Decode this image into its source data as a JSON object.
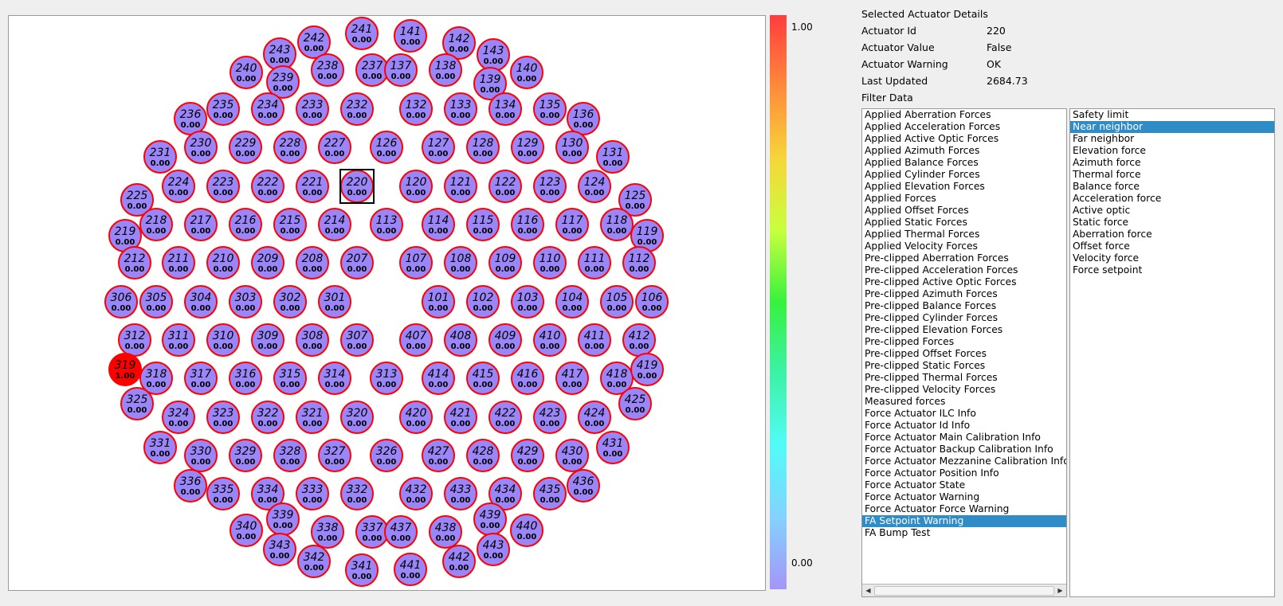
{
  "colors": {
    "actuator_fill": "#9a86f8",
    "actuator_border": "#ff0000",
    "warning_fill": "#ff0000",
    "selection_box": "#000000",
    "list_selection": "#308cc6"
  },
  "colorbar": {
    "max_label": "1.00",
    "min_label": "0.00",
    "gradient_top_to_bottom": [
      "#ff3d3d",
      "#ff8a3b",
      "#f6d63a",
      "#c8ff3e",
      "#37f23f",
      "#3cf2a7",
      "#53fbf8",
      "#83d2ff",
      "#a595f6"
    ]
  },
  "selected_actuator_id": "220",
  "actuators": [
    {
      "id": "241",
      "value": "0.00"
    },
    {
      "id": "141",
      "value": "0.00"
    },
    {
      "id": "242",
      "value": "0.00"
    },
    {
      "id": "142",
      "value": "0.00"
    },
    {
      "id": "243",
      "value": "0.00"
    },
    {
      "id": "143",
      "value": "0.00"
    },
    {
      "id": "240",
      "value": "0.00"
    },
    {
      "id": "238",
      "value": "0.00"
    },
    {
      "id": "237",
      "value": "0.00"
    },
    {
      "id": "137",
      "value": "0.00"
    },
    {
      "id": "138",
      "value": "0.00"
    },
    {
      "id": "140",
      "value": "0.00"
    },
    {
      "id": "239",
      "value": "0.00"
    },
    {
      "id": "139",
      "value": "0.00"
    },
    {
      "id": "235",
      "value": "0.00"
    },
    {
      "id": "234",
      "value": "0.00"
    },
    {
      "id": "233",
      "value": "0.00"
    },
    {
      "id": "232",
      "value": "0.00"
    },
    {
      "id": "132",
      "value": "0.00"
    },
    {
      "id": "133",
      "value": "0.00"
    },
    {
      "id": "134",
      "value": "0.00"
    },
    {
      "id": "135",
      "value": "0.00"
    },
    {
      "id": "236",
      "value": "0.00"
    },
    {
      "id": "136",
      "value": "0.00"
    },
    {
      "id": "230",
      "value": "0.00"
    },
    {
      "id": "229",
      "value": "0.00"
    },
    {
      "id": "228",
      "value": "0.00"
    },
    {
      "id": "227",
      "value": "0.00"
    },
    {
      "id": "126",
      "value": "0.00"
    },
    {
      "id": "127",
      "value": "0.00"
    },
    {
      "id": "128",
      "value": "0.00"
    },
    {
      "id": "129",
      "value": "0.00"
    },
    {
      "id": "130",
      "value": "0.00"
    },
    {
      "id": "231",
      "value": "0.00"
    },
    {
      "id": "131",
      "value": "0.00"
    },
    {
      "id": "224",
      "value": "0.00"
    },
    {
      "id": "223",
      "value": "0.00"
    },
    {
      "id": "222",
      "value": "0.00"
    },
    {
      "id": "221",
      "value": "0.00"
    },
    {
      "id": "220",
      "value": "0.00"
    },
    {
      "id": "120",
      "value": "0.00"
    },
    {
      "id": "121",
      "value": "0.00"
    },
    {
      "id": "122",
      "value": "0.00"
    },
    {
      "id": "123",
      "value": "0.00"
    },
    {
      "id": "124",
      "value": "0.00"
    },
    {
      "id": "225",
      "value": "0.00"
    },
    {
      "id": "125",
      "value": "0.00"
    },
    {
      "id": "218",
      "value": "0.00"
    },
    {
      "id": "217",
      "value": "0.00"
    },
    {
      "id": "216",
      "value": "0.00"
    },
    {
      "id": "215",
      "value": "0.00"
    },
    {
      "id": "214",
      "value": "0.00"
    },
    {
      "id": "113",
      "value": "0.00"
    },
    {
      "id": "114",
      "value": "0.00"
    },
    {
      "id": "115",
      "value": "0.00"
    },
    {
      "id": "116",
      "value": "0.00"
    },
    {
      "id": "117",
      "value": "0.00"
    },
    {
      "id": "118",
      "value": "0.00"
    },
    {
      "id": "219",
      "value": "0.00"
    },
    {
      "id": "119",
      "value": "0.00"
    },
    {
      "id": "212",
      "value": "0.00"
    },
    {
      "id": "211",
      "value": "0.00"
    },
    {
      "id": "210",
      "value": "0.00"
    },
    {
      "id": "209",
      "value": "0.00"
    },
    {
      "id": "208",
      "value": "0.00"
    },
    {
      "id": "207",
      "value": "0.00"
    },
    {
      "id": "107",
      "value": "0.00"
    },
    {
      "id": "108",
      "value": "0.00"
    },
    {
      "id": "109",
      "value": "0.00"
    },
    {
      "id": "110",
      "value": "0.00"
    },
    {
      "id": "111",
      "value": "0.00"
    },
    {
      "id": "112",
      "value": "0.00"
    },
    {
      "id": "306",
      "value": "0.00"
    },
    {
      "id": "305",
      "value": "0.00"
    },
    {
      "id": "304",
      "value": "0.00"
    },
    {
      "id": "303",
      "value": "0.00"
    },
    {
      "id": "302",
      "value": "0.00"
    },
    {
      "id": "301",
      "value": "0.00"
    },
    {
      "id": "101",
      "value": "0.00"
    },
    {
      "id": "102",
      "value": "0.00"
    },
    {
      "id": "103",
      "value": "0.00"
    },
    {
      "id": "104",
      "value": "0.00"
    },
    {
      "id": "105",
      "value": "0.00"
    },
    {
      "id": "106",
      "value": "0.00"
    },
    {
      "id": "312",
      "value": "0.00"
    },
    {
      "id": "311",
      "value": "0.00"
    },
    {
      "id": "310",
      "value": "0.00"
    },
    {
      "id": "309",
      "value": "0.00"
    },
    {
      "id": "308",
      "value": "0.00"
    },
    {
      "id": "307",
      "value": "0.00"
    },
    {
      "id": "407",
      "value": "0.00"
    },
    {
      "id": "408",
      "value": "0.00"
    },
    {
      "id": "409",
      "value": "0.00"
    },
    {
      "id": "410",
      "value": "0.00"
    },
    {
      "id": "411",
      "value": "0.00"
    },
    {
      "id": "412",
      "value": "0.00"
    },
    {
      "id": "319",
      "value": "1.00"
    },
    {
      "id": "318",
      "value": "0.00"
    },
    {
      "id": "317",
      "value": "0.00"
    },
    {
      "id": "316",
      "value": "0.00"
    },
    {
      "id": "315",
      "value": "0.00"
    },
    {
      "id": "314",
      "value": "0.00"
    },
    {
      "id": "313",
      "value": "0.00"
    },
    {
      "id": "414",
      "value": "0.00"
    },
    {
      "id": "415",
      "value": "0.00"
    },
    {
      "id": "416",
      "value": "0.00"
    },
    {
      "id": "417",
      "value": "0.00"
    },
    {
      "id": "418",
      "value": "0.00"
    },
    {
      "id": "419",
      "value": "0.00"
    },
    {
      "id": "325",
      "value": "0.00"
    },
    {
      "id": "425",
      "value": "0.00"
    },
    {
      "id": "324",
      "value": "0.00"
    },
    {
      "id": "323",
      "value": "0.00"
    },
    {
      "id": "322",
      "value": "0.00"
    },
    {
      "id": "321",
      "value": "0.00"
    },
    {
      "id": "320",
      "value": "0.00"
    },
    {
      "id": "420",
      "value": "0.00"
    },
    {
      "id": "421",
      "value": "0.00"
    },
    {
      "id": "422",
      "value": "0.00"
    },
    {
      "id": "423",
      "value": "0.00"
    },
    {
      "id": "424",
      "value": "0.00"
    },
    {
      "id": "331",
      "value": "0.00"
    },
    {
      "id": "431",
      "value": "0.00"
    },
    {
      "id": "330",
      "value": "0.00"
    },
    {
      "id": "329",
      "value": "0.00"
    },
    {
      "id": "328",
      "value": "0.00"
    },
    {
      "id": "327",
      "value": "0.00"
    },
    {
      "id": "326",
      "value": "0.00"
    },
    {
      "id": "427",
      "value": "0.00"
    },
    {
      "id": "428",
      "value": "0.00"
    },
    {
      "id": "429",
      "value": "0.00"
    },
    {
      "id": "430",
      "value": "0.00"
    },
    {
      "id": "336",
      "value": "0.00"
    },
    {
      "id": "436",
      "value": "0.00"
    },
    {
      "id": "335",
      "value": "0.00"
    },
    {
      "id": "334",
      "value": "0.00"
    },
    {
      "id": "333",
      "value": "0.00"
    },
    {
      "id": "332",
      "value": "0.00"
    },
    {
      "id": "432",
      "value": "0.00"
    },
    {
      "id": "433",
      "value": "0.00"
    },
    {
      "id": "434",
      "value": "0.00"
    },
    {
      "id": "435",
      "value": "0.00"
    },
    {
      "id": "339",
      "value": "0.00"
    },
    {
      "id": "439",
      "value": "0.00"
    },
    {
      "id": "340",
      "value": "0.00"
    },
    {
      "id": "338",
      "value": "0.00"
    },
    {
      "id": "337",
      "value": "0.00"
    },
    {
      "id": "437",
      "value": "0.00"
    },
    {
      "id": "438",
      "value": "0.00"
    },
    {
      "id": "440",
      "value": "0.00"
    },
    {
      "id": "343",
      "value": "0.00"
    },
    {
      "id": "443",
      "value": "0.00"
    },
    {
      "id": "342",
      "value": "0.00"
    },
    {
      "id": "442",
      "value": "0.00"
    },
    {
      "id": "341",
      "value": "0.00"
    },
    {
      "id": "441",
      "value": "0.00"
    }
  ],
  "details": {
    "heading": "Selected Actuator Details",
    "id_label": "Actuator Id",
    "id_value": "220",
    "value_label": "Actuator Value",
    "value_value": "False",
    "warning_label": "Actuator Warning",
    "warning_value": "OK",
    "updated_label": "Last Updated",
    "updated_value": "2684.73",
    "filter_heading": "Filter Data"
  },
  "topic_list": {
    "items": [
      "Applied Aberration Forces",
      "Applied Acceleration Forces",
      "Applied Active Optic Forces",
      "Applied Azimuth Forces",
      "Applied Balance Forces",
      "Applied Cylinder Forces",
      "Applied Elevation Forces",
      "Applied Forces",
      "Applied Offset Forces",
      "Applied Static Forces",
      "Applied Thermal Forces",
      "Applied Velocity Forces",
      "Pre-clipped Aberration Forces",
      "Pre-clipped Acceleration Forces",
      "Pre-clipped Active Optic Forces",
      "Pre-clipped Azimuth Forces",
      "Pre-clipped Balance Forces",
      "Pre-clipped Cylinder Forces",
      "Pre-clipped Elevation Forces",
      "Pre-clipped Forces",
      "Pre-clipped Offset Forces",
      "Pre-clipped Static Forces",
      "Pre-clipped Thermal Forces",
      "Pre-clipped Velocity Forces",
      "Measured forces",
      "Force Actuator ILC Info",
      "Force Actuator Id Info",
      "Force Actuator Main Calibration Info",
      "Force Actuator Backup Calibration Info",
      "Force Actuator Mezzanine Calibration Info",
      "Force Actuator Position Info",
      "Force Actuator State",
      "Force Actuator Warning",
      "Force Actuator Force Warning",
      "FA Setpoint Warning",
      "FA Bump Test"
    ],
    "selected": "FA Setpoint Warning",
    "scroll_left_icon": "arrow-left",
    "scroll_right_icon": "arrow-right"
  },
  "field_list": {
    "items": [
      "Safety limit",
      "Near neighbor",
      "Far neighbor",
      "Elevation force",
      "Azimuth force",
      "Thermal force",
      "Balance force",
      "Acceleration force",
      "Active optic",
      "Static force",
      "Aberration force",
      "Offset force",
      "Velocity force",
      "Force setpoint"
    ],
    "selected": "Near neighbor"
  }
}
